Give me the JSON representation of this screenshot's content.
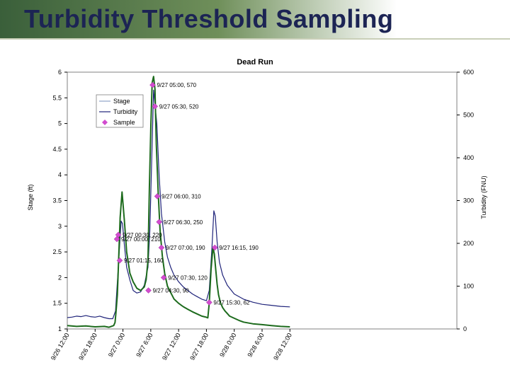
{
  "page": {
    "title": "Turbidity Threshold Sampling"
  },
  "colors": {
    "stage": "#1f237a",
    "turbidity": "#1d6b1d",
    "sample": "#d24ccf",
    "banner": "#3a5f3a"
  },
  "chart_data": {
    "type": "line",
    "title": "Dead Run",
    "ylabel": "Stage (ft)",
    "y2label": "Turbidity (FNU)",
    "ylim": [
      1,
      6
    ],
    "y2lim": [
      0,
      600
    ],
    "yticks": [
      1,
      1.5,
      2,
      2.5,
      3,
      3.5,
      4,
      4.5,
      5,
      5.5,
      6
    ],
    "y2ticks": [
      0,
      100,
      200,
      300,
      400,
      500,
      600
    ],
    "xlim": [
      0,
      84
    ],
    "xticks": [
      {
        "h": 0,
        "label": "9/26 12:00"
      },
      {
        "h": 6,
        "label": "9/26 18:00"
      },
      {
        "h": 12,
        "label": "9/27 0:00"
      },
      {
        "h": 18,
        "label": "9/27 6:00"
      },
      {
        "h": 24,
        "label": "9/27 12:00"
      },
      {
        "h": 30,
        "label": "9/27 18:00"
      },
      {
        "h": 36,
        "label": "9/28 0:00"
      },
      {
        "h": 42,
        "label": "9/28 6:00"
      },
      {
        "h": 48,
        "label": "9/28 12:00"
      }
    ],
    "legend": {
      "placement": "top-left",
      "entries": [
        "Stage",
        "Turbidity",
        "Sample"
      ]
    },
    "series": [
      {
        "name": "Stage",
        "axis": "left",
        "x": [
          0,
          1,
          2,
          3,
          4,
          5,
          6,
          7,
          8,
          9,
          9.8,
          10.4,
          11,
          11.6,
          11.9,
          12.3,
          12.8,
          13.5,
          14.2,
          15,
          15.8,
          16.6,
          17.4,
          17.8,
          18.2,
          18.6,
          19.3,
          19.8,
          20.3,
          21,
          21.6,
          22.3,
          23,
          24,
          25,
          26,
          27,
          28,
          29,
          30,
          30.6,
          31.2,
          31.6,
          31.9,
          32.3,
          32.8,
          33.5,
          34.5,
          36,
          38,
          40,
          42,
          44,
          46,
          48
        ],
        "values": [
          1.22,
          1.23,
          1.25,
          1.24,
          1.26,
          1.24,
          1.23,
          1.25,
          1.22,
          1.2,
          1.2,
          1.35,
          2.2,
          3.1,
          3.05,
          2.65,
          2.2,
          1.95,
          1.75,
          1.7,
          1.72,
          1.85,
          2.2,
          2.9,
          4.3,
          5.65,
          5.0,
          4.0,
          3.25,
          2.7,
          2.4,
          2.2,
          2.05,
          1.92,
          1.82,
          1.75,
          1.68,
          1.63,
          1.58,
          1.55,
          1.75,
          2.6,
          3.3,
          3.2,
          2.7,
          2.3,
          2.05,
          1.85,
          1.68,
          1.58,
          1.52,
          1.48,
          1.46,
          1.44,
          1.43
        ]
      },
      {
        "name": "Turbidity",
        "axis": "right",
        "x": [
          0,
          2,
          4,
          6,
          8,
          9,
          10,
          10.3,
          10.5,
          10.8,
          11,
          11.4,
          11.8,
          12.3,
          12.8,
          13.5,
          14.2,
          15,
          15.8,
          16.6,
          17,
          17.4,
          17.7,
          18,
          18.3,
          18.6,
          18.9,
          19.2,
          19.6,
          20,
          20.5,
          21,
          21.6,
          22.3,
          23,
          24,
          25,
          26,
          27,
          28,
          29,
          29.8,
          30.3,
          30.6,
          31,
          31.4,
          31.7,
          32,
          32.3,
          32.6,
          33,
          33.5,
          34,
          34.5,
          35,
          36,
          37,
          38,
          40,
          42,
          44,
          46,
          48
        ],
        "values": [
          8,
          6,
          7,
          5,
          6,
          4,
          8,
          15,
          40,
          80,
          140,
          260,
          320,
          255,
          180,
          130,
          110,
          95,
          90,
          98,
          115,
          160,
          330,
          470,
          575,
          590,
          560,
          430,
          320,
          230,
          170,
          130,
          100,
          85,
          70,
          60,
          52,
          46,
          40,
          35,
          30,
          28,
          26,
          60,
          140,
          190,
          175,
          140,
          105,
          80,
          62,
          50,
          42,
          36,
          30,
          25,
          20,
          16,
          12,
          10,
          8,
          6,
          5
        ]
      }
    ],
    "samples": [
      {
        "x": 18.4,
        "y": 570,
        "label": "9/27 05:00, 570"
      },
      {
        "x": 18.9,
        "y": 520,
        "label": "9/27 05:30, 520"
      },
      {
        "x": 19.4,
        "y": 310,
        "label": "9/27 06:00, 310"
      },
      {
        "x": 19.8,
        "y": 250,
        "label": "9/27 06:30, 250"
      },
      {
        "x": 11.0,
        "y": 220,
        "label": "9/27 00:30, 220"
      },
      {
        "x": 10.7,
        "y": 210,
        "label": "9/27 00:00, 210"
      },
      {
        "x": 20.3,
        "y": 190,
        "label": "9/27 07:00, 190"
      },
      {
        "x": 31.8,
        "y": 190,
        "label": "9/27 16:15, 190"
      },
      {
        "x": 11.3,
        "y": 160,
        "label": "9/27 01:15, 160"
      },
      {
        "x": 20.8,
        "y": 120,
        "label": "9/27 07:30, 120"
      },
      {
        "x": 17.5,
        "y": 90,
        "label": "9/27 04:30, 90"
      },
      {
        "x": 30.6,
        "y": 62,
        "label": "9/27 15:30, 62"
      }
    ]
  }
}
